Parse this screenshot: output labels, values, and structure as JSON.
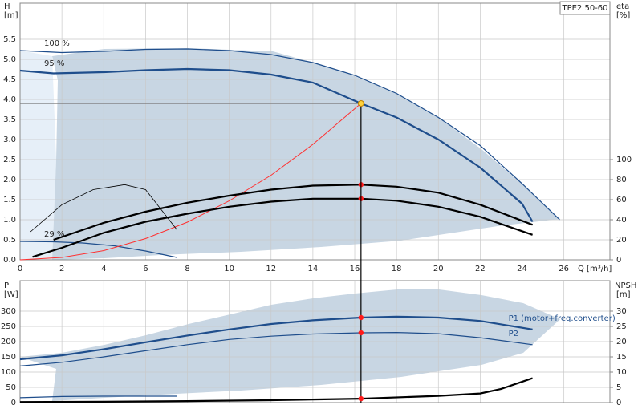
{
  "chart_data": [
    {
      "type": "line",
      "model": "TPE2 50-60",
      "y_label": "H",
      "y_unit": "[m]",
      "y2_label": "eta",
      "y2_unit": "[%]",
      "x_label": "Q [m³/h]",
      "xlim": [
        0,
        28.2
      ],
      "xticks": [
        0,
        2,
        4,
        6,
        8,
        10,
        12,
        14,
        16,
        18,
        20,
        22,
        24,
        26
      ],
      "show_xtick_labels": true,
      "ylim": [
        0,
        6.4
      ],
      "yticks": [
        {
          "value": 0,
          "label": "0.0"
        },
        0.5,
        {
          "value": 1,
          "label": "1.0"
        },
        1.5,
        {
          "value": 2,
          "label": "2.0"
        },
        2.5,
        {
          "value": 3,
          "label": "3.0"
        },
        3.5,
        {
          "value": 4,
          "label": "4.0"
        },
        4.5,
        {
          "value": 5,
          "label": "5.0"
        },
        5.5
      ],
      "y2lim": [
        0,
        256
      ],
      "y2ticks": [
        0,
        20,
        40,
        60,
        80,
        100
      ],
      "grid": true,
      "duty_point": {
        "x": 16.3,
        "y": 3.9,
        "color": "#ffd23c"
      },
      "series": [
        {
          "name": "100 %",
          "name_position": "start",
          "color": "#1f4e8c",
          "width": 1.2,
          "x": [
            0,
            2,
            4,
            6,
            8,
            10,
            12,
            14,
            16,
            18,
            20,
            22,
            24,
            25.8
          ],
          "values": [
            5.22,
            5.17,
            5.2,
            5.25,
            5.26,
            5.22,
            5.12,
            4.92,
            4.6,
            4.15,
            3.55,
            2.85,
            1.9,
            1.0
          ]
        },
        {
          "name": "95 %",
          "name_position": "start",
          "color": "#1f4e8c",
          "width": 2.2,
          "x": [
            0,
            1.6,
            4,
            6,
            8,
            10,
            12,
            14,
            16.3,
            18,
            20,
            22,
            24,
            24.5
          ],
          "values": [
            4.72,
            4.65,
            4.68,
            4.73,
            4.76,
            4.73,
            4.62,
            4.42,
            3.9,
            3.55,
            3.0,
            2.3,
            1.4,
            0.95
          ]
        },
        {
          "name": "29 %",
          "name_position": "start",
          "color": "#1f4e8c",
          "width": 1.2,
          "x": [
            0,
            1.6,
            3,
            4.5,
            6,
            7.5
          ],
          "values": [
            0.46,
            0.45,
            0.42,
            0.35,
            0.22,
            0.06
          ]
        },
        {
          "color": "#ff3030",
          "width": 1,
          "x": [
            0,
            2,
            4,
            6,
            8,
            10,
            12,
            14,
            16.3
          ],
          "values": [
            0,
            0.06,
            0.23,
            0.53,
            0.94,
            1.47,
            2.11,
            2.88,
            3.9
          ]
        },
        {
          "axis": "y2",
          "color": "#000000",
          "width": 2.2,
          "dot": true,
          "x": [
            1.6,
            4,
            6,
            8,
            10,
            12,
            14,
            16.3,
            18,
            20,
            22,
            24.5
          ],
          "values": [
            20,
            37,
            48,
            57,
            64,
            70,
            74,
            75,
            73,
            67,
            55,
            35
          ]
        },
        {
          "axis": "y2",
          "color": "#000000",
          "width": 2.2,
          "dot": true,
          "x": [
            0.6,
            2,
            4,
            6,
            8,
            10,
            12,
            14,
            16.3,
            18,
            20,
            22,
            24.5
          ],
          "values": [
            3,
            12,
            27,
            38,
            46,
            53,
            58,
            61,
            61,
            59,
            53,
            43,
            25
          ]
        },
        {
          "axis": "y2",
          "color": "#000000",
          "width": 0.8,
          "x": [
            0.5,
            2,
            3.5,
            5,
            6,
            7.5
          ],
          "values": [
            28,
            55,
            70,
            75,
            70,
            30
          ]
        }
      ]
    },
    {
      "type": "line",
      "y_label": "P",
      "y_unit": "[W]",
      "y2_label": "NPSH",
      "y2_unit": "[m]",
      "xlim": [
        0,
        28.2
      ],
      "xticks": [
        0,
        2,
        4,
        6,
        8,
        10,
        12,
        14,
        16,
        18,
        20,
        22,
        24,
        26
      ],
      "show_xtick_labels": false,
      "ylim": [
        0,
        400
      ],
      "yticks": [
        0,
        50,
        100,
        150,
        200,
        250,
        300
      ],
      "y2lim": [
        0,
        40
      ],
      "y2ticks": [
        0,
        5,
        10,
        15,
        20,
        25,
        30
      ],
      "grid": true,
      "series": [
        {
          "name": "P1 (motor+freq.converter)",
          "name_position": "end",
          "color": "#1f4e8c",
          "width": 2.2,
          "dot": true,
          "x": [
            0,
            2,
            4,
            6,
            8,
            10,
            12,
            14,
            16.3,
            18,
            20,
            22,
            24.5
          ],
          "values": [
            142,
            155,
            175,
            198,
            220,
            240,
            258,
            270,
            279,
            282,
            279,
            268,
            240
          ]
        },
        {
          "name": "P2",
          "name_position": "end",
          "color": "#1f4e8c",
          "width": 1.2,
          "dot": true,
          "x": [
            0,
            2,
            4,
            6,
            8,
            10,
            12,
            14,
            16.3,
            18,
            20,
            22,
            24.5
          ],
          "values": [
            120,
            132,
            150,
            170,
            190,
            207,
            218,
            225,
            229,
            230,
            226,
            213,
            190
          ]
        },
        {
          "color": "#1f4e8c",
          "width": 1.2,
          "x": [
            0,
            2,
            4,
            6,
            7.5
          ],
          "values": [
            16,
            20,
            21,
            21,
            21
          ]
        },
        {
          "axis": "y2",
          "color": "#000000",
          "width": 2.2,
          "dot": true,
          "x": [
            0,
            4,
            8,
            12,
            16.3,
            20,
            22,
            23,
            24.5
          ],
          "values": [
            0.2,
            0.3,
            0.5,
            0.8,
            1.3,
            2.2,
            3,
            4.5,
            8
          ]
        }
      ]
    }
  ]
}
